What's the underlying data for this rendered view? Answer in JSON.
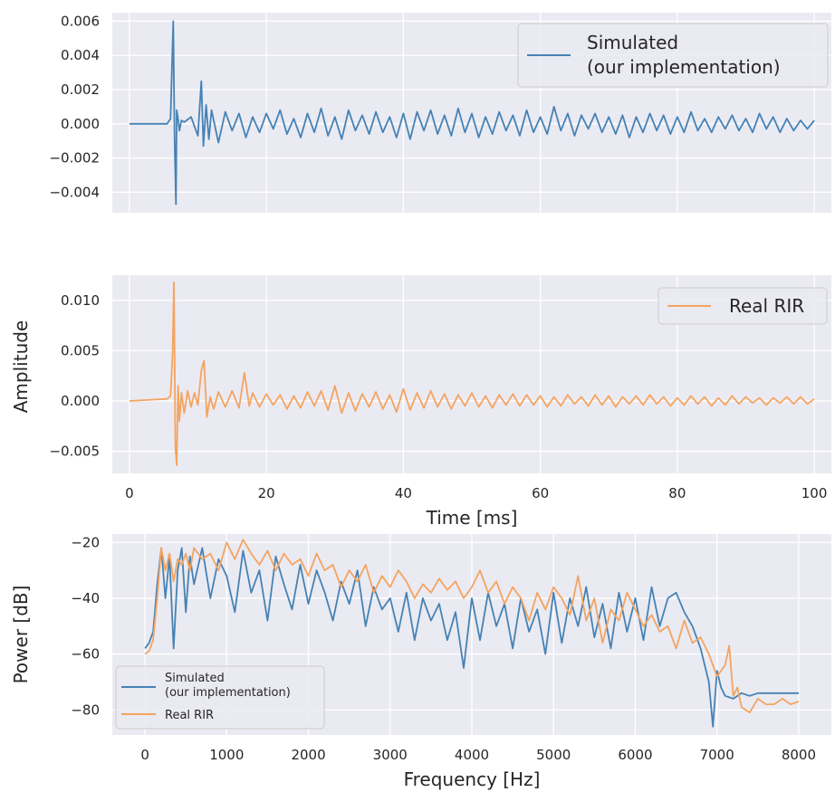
{
  "colors": {
    "simulated": "#4682b4",
    "real": "#f4a460",
    "panel_background": "#eaeaf2",
    "grid": "#ffffff"
  },
  "chart_data": [
    {
      "type": "line",
      "panel": "top",
      "xlim": [
        -2.5,
        102.5
      ],
      "ylim": [
        -0.0052,
        0.0065
      ],
      "yticks": [
        -0.004,
        -0.002,
        0.0,
        0.002,
        0.004,
        0.006
      ],
      "ytick_labels": [
        "−0.004",
        "−0.002",
        "0.000",
        "0.002",
        "0.004",
        "0.006"
      ],
      "xticks": [
        0,
        20,
        40,
        60,
        80,
        100
      ],
      "xtick_labels_visible": false,
      "grid": true,
      "legend": {
        "position": "top-right",
        "lines": [
          "Simulated",
          "(our implementation)"
        ]
      },
      "series": [
        {
          "name": "Simulated\n(our implementation)",
          "color": "#4682b4",
          "x": [
            0,
            5.5,
            6.0,
            6.4,
            6.6,
            6.8,
            6.9,
            7.1,
            7.3,
            7.6,
            8,
            9,
            10,
            10.5,
            10.8,
            11.2,
            11.6,
            12,
            13,
            14,
            15,
            16,
            17,
            18,
            19,
            20,
            21,
            22,
            23,
            24,
            25,
            26,
            27,
            28,
            29,
            30,
            31,
            32,
            33,
            34,
            35,
            36,
            37,
            38,
            39,
            40,
            41,
            42,
            43,
            44,
            45,
            46,
            47,
            48,
            49,
            50,
            51,
            52,
            53,
            54,
            55,
            56,
            57,
            58,
            59,
            60,
            61,
            62,
            63,
            64,
            65,
            66,
            67,
            68,
            69,
            70,
            71,
            72,
            73,
            74,
            75,
            76,
            77,
            78,
            79,
            80,
            81,
            82,
            83,
            84,
            85,
            86,
            87,
            88,
            89,
            90,
            91,
            92,
            93,
            94,
            95,
            96,
            97,
            98,
            99,
            100
          ],
          "y": [
            0.0,
            0.0,
            0.0003,
            0.006,
            -0.001,
            -0.0047,
            0.0008,
            0.0003,
            -0.0004,
            0.0002,
            0.0001,
            0.0004,
            -0.0007,
            0.0025,
            -0.0013,
            0.0011,
            -0.0009,
            0.0008,
            -0.0011,
            0.0007,
            -0.0004,
            0.0006,
            -0.0008,
            0.0004,
            -0.0005,
            0.0006,
            -0.0003,
            0.0008,
            -0.0006,
            0.0003,
            -0.0008,
            0.0006,
            -0.0005,
            0.0009,
            -0.0007,
            0.0004,
            -0.0009,
            0.0008,
            -0.0004,
            0.0005,
            -0.0006,
            0.0007,
            -0.0005,
            0.0004,
            -0.0008,
            0.0006,
            -0.0009,
            0.0007,
            -0.0004,
            0.0008,
            -0.0006,
            0.0005,
            -0.0007,
            0.0009,
            -0.0005,
            0.0006,
            -0.0008,
            0.0004,
            -0.0006,
            0.0007,
            -0.0004,
            0.0005,
            -0.0007,
            0.0008,
            -0.0005,
            0.0004,
            -0.0006,
            0.001,
            -0.0004,
            0.0006,
            -0.0007,
            0.0005,
            -0.0003,
            0.0006,
            -0.0005,
            0.0004,
            -0.0006,
            0.0005,
            -0.0008,
            0.0004,
            -0.0005,
            0.0006,
            -0.0004,
            0.0005,
            -0.0006,
            0.0004,
            -0.0005,
            0.0007,
            -0.0004,
            0.0003,
            -0.0005,
            0.0004,
            -0.0003,
            0.0005,
            -0.0004,
            0.0003,
            -0.0005,
            0.0006,
            -0.0003,
            0.0004,
            -0.0005,
            0.0003,
            -0.0004,
            0.0002,
            -0.0003,
            0.0002
          ]
        }
      ]
    },
    {
      "type": "line",
      "panel": "middle",
      "xlim": [
        -2.5,
        102.5
      ],
      "ylim": [
        -0.0072,
        0.0125
      ],
      "yticks": [
        -0.005,
        0.0,
        0.005,
        0.01
      ],
      "ytick_labels": [
        "−0.005",
        "0.000",
        "0.005",
        "0.010"
      ],
      "xticks": [
        0,
        20,
        40,
        60,
        80,
        100
      ],
      "xtick_labels": [
        "0",
        "20",
        "40",
        "60",
        "80",
        "100"
      ],
      "xlabel": "Time [ms]",
      "ylabel": "Amplitude",
      "grid": true,
      "legend": {
        "position": "top-right",
        "lines": [
          "Real RIR"
        ]
      },
      "series": [
        {
          "name": "Real RIR",
          "color": "#f4a460",
          "x": [
            0,
            5.5,
            6.0,
            6.3,
            6.5,
            6.7,
            6.9,
            7.1,
            7.3,
            7.6,
            8,
            8.5,
            9,
            9.5,
            10,
            10.5,
            10.9,
            11.3,
            11.8,
            12.3,
            13,
            14,
            15,
            16,
            16.8,
            17.5,
            18,
            19,
            20,
            21,
            22,
            23,
            24,
            25,
            26,
            27,
            28,
            29,
            30,
            31,
            32,
            33,
            34,
            35,
            36,
            37,
            38,
            39,
            40,
            41,
            42,
            43,
            44,
            45,
            46,
            47,
            48,
            49,
            50,
            51,
            52,
            53,
            54,
            55,
            56,
            57,
            58,
            59,
            60,
            61,
            62,
            63,
            64,
            65,
            66,
            67,
            68,
            69,
            70,
            71,
            72,
            73,
            74,
            75,
            76,
            77,
            78,
            79,
            80,
            81,
            82,
            83,
            84,
            85,
            86,
            87,
            88,
            89,
            90,
            91,
            92,
            93,
            94,
            95,
            96,
            97,
            98,
            99,
            100
          ],
          "y": [
            0.0,
            0.0002,
            0.0005,
            0.0045,
            0.0118,
            -0.0045,
            -0.0064,
            0.0015,
            -0.002,
            0.0008,
            -0.0012,
            0.001,
            -0.0006,
            0.0008,
            -0.0004,
            0.003,
            0.004,
            -0.0016,
            0.0004,
            -0.0008,
            0.0009,
            -0.0006,
            0.001,
            -0.0007,
            0.0028,
            -0.0005,
            0.0008,
            -0.0006,
            0.0007,
            -0.0004,
            0.0006,
            -0.0008,
            0.0005,
            -0.0007,
            0.0009,
            -0.0005,
            0.001,
            -0.0009,
            0.0015,
            -0.0012,
            0.0008,
            -0.001,
            0.0007,
            -0.0006,
            0.0009,
            -0.0008,
            0.0006,
            -0.0011,
            0.0012,
            -0.0009,
            0.0008,
            -0.0007,
            0.001,
            -0.0006,
            0.0007,
            -0.0008,
            0.0006,
            -0.0005,
            0.0008,
            -0.0006,
            0.0005,
            -0.0007,
            0.0006,
            -0.0004,
            0.0007,
            -0.0005,
            0.0006,
            -0.0004,
            0.0005,
            -0.0006,
            0.0004,
            -0.0005,
            0.0006,
            -0.0003,
            0.0004,
            -0.0005,
            0.0006,
            -0.0004,
            0.0005,
            -0.0006,
            0.0004,
            -0.0003,
            0.0005,
            -0.0004,
            0.0006,
            -0.0003,
            0.0004,
            -0.0005,
            0.0003,
            -0.0004,
            0.0005,
            -0.0003,
            0.0004,
            -0.0005,
            0.0003,
            -0.0004,
            0.0005,
            -0.0003,
            0.0004,
            -0.0002,
            0.0003,
            -0.0004,
            0.0003,
            -0.0002,
            0.0004,
            -0.0003,
            0.0004,
            -0.0003,
            0.0002
          ]
        }
      ]
    },
    {
      "type": "line",
      "panel": "bottom",
      "xlim": [
        -400,
        8400
      ],
      "ylim": [
        -89,
        -17
      ],
      "yticks": [
        -80,
        -60,
        -40,
        -20
      ],
      "ytick_labels": [
        "−80",
        "−60",
        "−40",
        "−20"
      ],
      "xticks": [
        0,
        1000,
        2000,
        3000,
        4000,
        5000,
        6000,
        7000,
        8000
      ],
      "xtick_labels": [
        "0",
        "1000",
        "2000",
        "3000",
        "4000",
        "5000",
        "6000",
        "7000",
        "8000"
      ],
      "xlabel": "Frequency [Hz]",
      "ylabel": "Power [dB]",
      "grid": true,
      "legend": {
        "position": "lower-left",
        "entries": [
          [
            "Simulated",
            "(our implementation)"
          ],
          [
            "Real RIR"
          ]
        ]
      },
      "series": [
        {
          "name": "Simulated\n(our implementation)",
          "color": "#4682b4",
          "x": [
            0,
            50,
            100,
            150,
            200,
            250,
            300,
            350,
            400,
            450,
            500,
            550,
            600,
            700,
            800,
            900,
            1000,
            1100,
            1200,
            1300,
            1400,
            1500,
            1600,
            1700,
            1800,
            1900,
            2000,
            2100,
            2200,
            2300,
            2400,
            2500,
            2600,
            2700,
            2800,
            2900,
            3000,
            3100,
            3200,
            3300,
            3400,
            3500,
            3600,
            3700,
            3800,
            3900,
            4000,
            4100,
            4200,
            4300,
            4400,
            4500,
            4600,
            4700,
            4800,
            4900,
            5000,
            5100,
            5200,
            5300,
            5400,
            5500,
            5600,
            5700,
            5800,
            5900,
            6000,
            6100,
            6200,
            6300,
            6400,
            6500,
            6600,
            6700,
            6800,
            6900,
            6950,
            7000,
            7050,
            7100,
            7200,
            7300,
            7400,
            7500,
            7600,
            7700,
            7800,
            7900,
            8000
          ],
          "y": [
            -58,
            -56,
            -52,
            -35,
            -22,
            -40,
            -25,
            -58,
            -30,
            -22,
            -45,
            -25,
            -35,
            -22,
            -40,
            -26,
            -32,
            -45,
            -23,
            -38,
            -30,
            -48,
            -25,
            -35,
            -44,
            -28,
            -42,
            -30,
            -38,
            -48,
            -34,
            -42,
            -30,
            -50,
            -36,
            -44,
            -40,
            -52,
            -38,
            -55,
            -40,
            -48,
            -42,
            -55,
            -45,
            -65,
            -40,
            -55,
            -38,
            -50,
            -42,
            -58,
            -40,
            -52,
            -44,
            -60,
            -38,
            -56,
            -40,
            -50,
            -36,
            -54,
            -42,
            -58,
            -38,
            -52,
            -40,
            -55,
            -36,
            -50,
            -40,
            -38,
            -45,
            -50,
            -58,
            -70,
            -86,
            -66,
            -72,
            -75,
            -76,
            -74,
            -75,
            -74,
            -74,
            -74,
            -74,
            -74,
            -74
          ]
        },
        {
          "name": "Real RIR",
          "color": "#f4a460",
          "x": [
            0,
            50,
            100,
            150,
            200,
            250,
            300,
            350,
            400,
            450,
            500,
            550,
            600,
            700,
            800,
            900,
            1000,
            1100,
            1200,
            1300,
            1400,
            1500,
            1600,
            1700,
            1800,
            1900,
            2000,
            2100,
            2200,
            2300,
            2400,
            2500,
            2600,
            2700,
            2800,
            2900,
            3000,
            3100,
            3200,
            3300,
            3400,
            3500,
            3600,
            3700,
            3800,
            3900,
            4000,
            4100,
            4200,
            4300,
            4400,
            4500,
            4600,
            4700,
            4800,
            4900,
            5000,
            5100,
            5200,
            5300,
            5400,
            5500,
            5600,
            5700,
            5800,
            5900,
            6000,
            6100,
            6200,
            6300,
            6400,
            6500,
            6600,
            6700,
            6800,
            6900,
            7000,
            7100,
            7150,
            7200,
            7250,
            7300,
            7400,
            7500,
            7600,
            7700,
            7800,
            7900,
            8000
          ],
          "y": [
            -60,
            -59,
            -55,
            -40,
            -22,
            -30,
            -24,
            -34,
            -26,
            -28,
            -24,
            -30,
            -22,
            -26,
            -24,
            -30,
            -20,
            -26,
            -19,
            -24,
            -28,
            -23,
            -30,
            -24,
            -28,
            -26,
            -32,
            -24,
            -30,
            -28,
            -36,
            -30,
            -34,
            -28,
            -38,
            -32,
            -36,
            -30,
            -34,
            -40,
            -35,
            -38,
            -33,
            -37,
            -34,
            -40,
            -36,
            -30,
            -38,
            -34,
            -42,
            -36,
            -40,
            -48,
            -38,
            -44,
            -36,
            -40,
            -46,
            -32,
            -48,
            -40,
            -56,
            -44,
            -48,
            -38,
            -44,
            -50,
            -46,
            -52,
            -50,
            -58,
            -48,
            -56,
            -54,
            -60,
            -68,
            -64,
            -57,
            -75,
            -72,
            -79,
            -81,
            -76,
            -78,
            -78,
            -76,
            -78,
            -77
          ]
        }
      ]
    }
  ]
}
